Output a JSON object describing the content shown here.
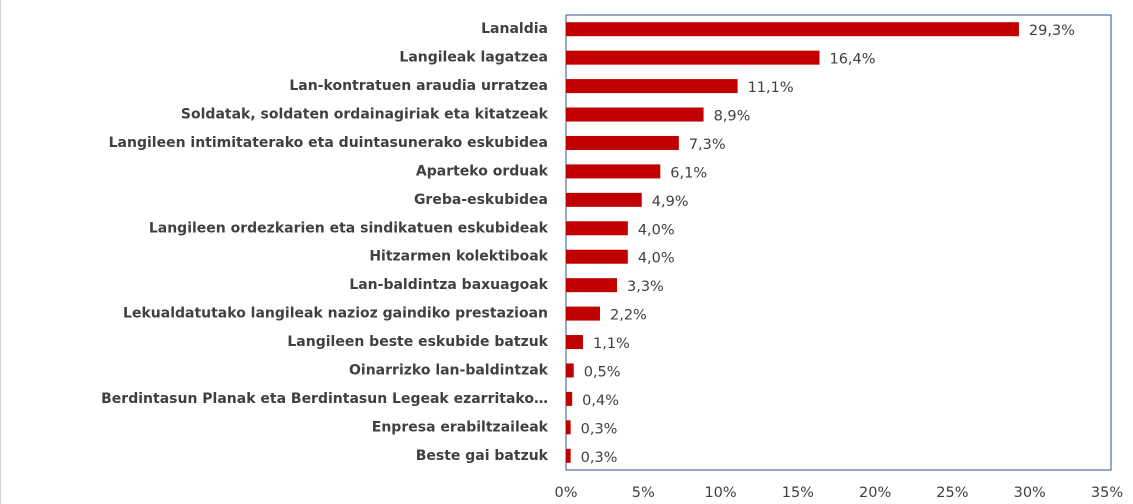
{
  "chart_data": {
    "type": "hbar",
    "categories": [
      "Lanaldia",
      "Langileak lagatzea",
      "Lan-kontratuen araudia urratzea",
      "Soldatak, soldaten ordainagiriak eta kitatzeak",
      "Langileen intimitaterako eta duintasunerako eskubidea",
      "Aparteko orduak",
      "Greba-eskubidea",
      "Langileen ordezkarien eta sindikatuen eskubideak",
      "Hitzarmen kolektiboak",
      "Lan-baldintza baxuagoak",
      "Lekualdatutako langileak nazioz gaindiko prestazioan",
      "Langileen beste eskubide batzuk",
      "Oinarrizko lan-baldintzak",
      "Berdintasun Planak eta Berdintasun Legeak ezarritako…",
      "Enpresa erabiltzaileak",
      "Beste gai batzuk"
    ],
    "values": [
      29.3,
      16.4,
      11.1,
      8.9,
      7.3,
      6.1,
      4.9,
      4.0,
      4.0,
      3.3,
      2.2,
      1.1,
      0.5,
      0.4,
      0.3,
      0.3
    ],
    "value_labels": [
      "29,3%",
      "16,4%",
      "11,1%",
      "8,9%",
      "7,3%",
      "6,1%",
      "4,9%",
      "4,0%",
      "4,0%",
      "3,3%",
      "2,2%",
      "1,1%",
      "0,5%",
      "0,4%",
      "0,3%",
      "0,3%"
    ],
    "color": "#c00000",
    "xlim": [
      0,
      35
    ],
    "xticks": [
      {
        "value": 0,
        "label": "0%"
      },
      {
        "value": 5,
        "label": "5%"
      },
      {
        "value": 10,
        "label": "10%"
      },
      {
        "value": 15,
        "label": "15%"
      },
      {
        "value": 20,
        "label": "20%"
      },
      {
        "value": 25,
        "label": "25%"
      },
      {
        "value": 30,
        "label": "30%"
      },
      {
        "value": 35,
        "label": "35%"
      }
    ]
  }
}
